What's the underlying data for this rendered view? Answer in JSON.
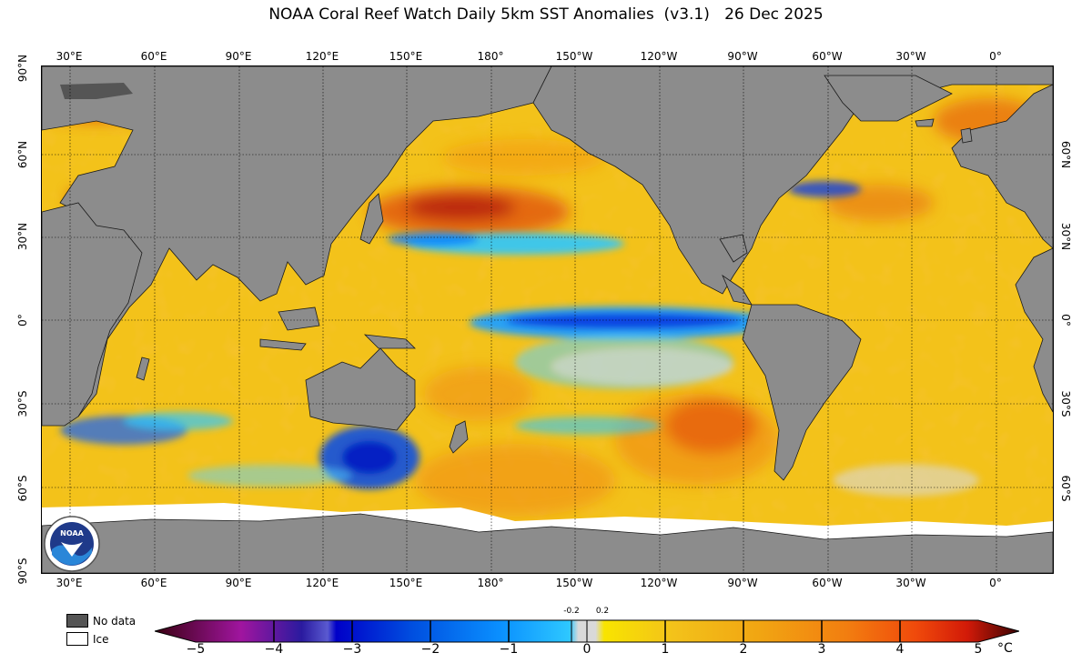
{
  "title": "NOAA Coral Reef Watch Daily 5km SST Anomalies  (v3.1)   26 Dec 2025",
  "map": {
    "longitude_ticks_top": [
      "30°E",
      "60°E",
      "90°E",
      "120°E",
      "150°E",
      "180°",
      "150°W",
      "120°W",
      "90°W",
      "60°W",
      "30°W",
      "0°"
    ],
    "longitude_ticks_bottom": [
      "30°E",
      "60°E",
      "90°E",
      "120°E",
      "150°E",
      "180°",
      "150°W",
      "120°W",
      "90°W",
      "60°W",
      "30°W",
      "0°"
    ],
    "latitude_ticks_left": [
      "90°N",
      "60°N",
      "30°N",
      "0°",
      "30°S",
      "60°S",
      "90°S"
    ],
    "latitude_ticks_right": [
      "60°N",
      "30°N",
      "0°",
      "30°S",
      "60°S"
    ],
    "logo_text": "NOAA",
    "colors": {
      "land": "#8c8c8c",
      "ocean_base": "#f3c21a",
      "ice": "#ffffff",
      "no_data": "#555555"
    }
  },
  "legend": {
    "no_data_label": "No data",
    "ice_label": "Ice"
  },
  "colorbar": {
    "tick_labels": [
      "−5",
      "−4",
      "−3",
      "−2",
      "−1",
      "0",
      "1",
      "2",
      "3",
      "4",
      "5"
    ],
    "small_labels": [
      "-0.2",
      "0.2"
    ],
    "unit": "°C",
    "range": [
      -5,
      5
    ],
    "colors": [
      "#3a0010",
      "#6a0a5a",
      "#a0159f",
      "#2a1a9f",
      "#5a5ad0",
      "#0000c8",
      "#0050e0",
      "#0a90ff",
      "#2ec8ff",
      "#d9d9d9",
      "#f8e400",
      "#f3c21a",
      "#f1a512",
      "#f27e10",
      "#f04a0b",
      "#d21a08",
      "#8c0f04",
      "#3a0303"
    ]
  }
}
